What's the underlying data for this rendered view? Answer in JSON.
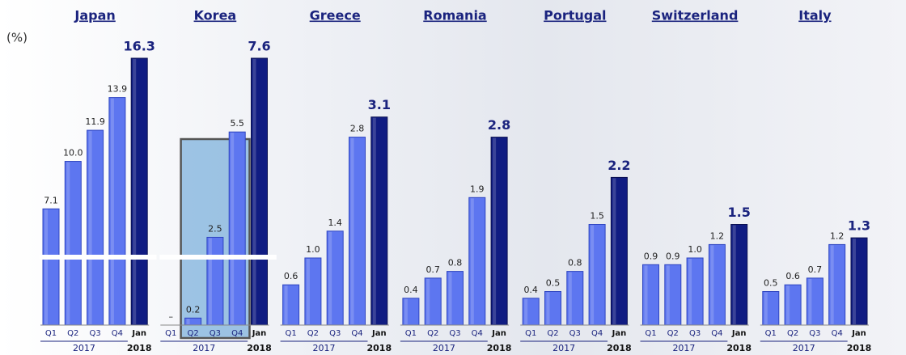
{
  "chart_data": [
    {
      "type": "bar",
      "title": "Japan",
      "ylabel": "(%)",
      "categories": [
        "Q1",
        "Q2",
        "Q3",
        "Q4",
        "Jan"
      ],
      "x_groups": [
        "2017",
        "2018"
      ],
      "values": [
        7.1,
        10.0,
        11.9,
        13.9,
        16.3
      ],
      "value_labels": [
        "7.1",
        "10.0",
        "11.9",
        "13.9",
        "16.3"
      ],
      "colors": [
        "#5d76f0",
        "#5d76f0",
        "#5d76f0",
        "#5d76f0",
        "#101c82"
      ],
      "axis_break": true
    },
    {
      "type": "bar",
      "title": "Korea",
      "categories": [
        "Q1",
        "Q2",
        "Q3",
        "Q4",
        "Jan"
      ],
      "x_groups": [
        "2017",
        "2018"
      ],
      "values": [
        null,
        0.2,
        2.5,
        5.5,
        7.6
      ],
      "value_labels": [
        "–",
        "0.2",
        "2.5",
        "5.5",
        "7.6"
      ],
      "colors": [
        "#5d76f0",
        "#5d76f0",
        "#5d76f0",
        "#5d76f0",
        "#101c82"
      ],
      "axis_break": true
    },
    {
      "type": "bar",
      "title": "Greece",
      "categories": [
        "Q1",
        "Q2",
        "Q3",
        "Q4",
        "Jan"
      ],
      "x_groups": [
        "2017",
        "2018"
      ],
      "values": [
        0.6,
        1.0,
        1.4,
        2.8,
        3.1
      ],
      "value_labels": [
        "0.6",
        "1.0",
        "1.4",
        "2.8",
        "3.1"
      ],
      "colors": [
        "#5d76f0",
        "#5d76f0",
        "#5d76f0",
        "#5d76f0",
        "#101c82"
      ]
    },
    {
      "type": "bar",
      "title": "Romania",
      "categories": [
        "Q1",
        "Q2",
        "Q3",
        "Q4",
        "Jan"
      ],
      "x_groups": [
        "2017",
        "2018"
      ],
      "values": [
        0.4,
        0.7,
        0.8,
        1.9,
        2.8
      ],
      "value_labels": [
        "0.4",
        "0.7",
        "0.8",
        "1.9",
        "2.8"
      ],
      "colors": [
        "#5d76f0",
        "#5d76f0",
        "#5d76f0",
        "#5d76f0",
        "#101c82"
      ]
    },
    {
      "type": "bar",
      "title": "Portugal",
      "categories": [
        "Q1",
        "Q2",
        "Q3",
        "Q4",
        "Jan"
      ],
      "x_groups": [
        "2017",
        "2018"
      ],
      "values": [
        0.4,
        0.5,
        0.8,
        1.5,
        2.2
      ],
      "value_labels": [
        "0.4",
        "0.5",
        "0.8",
        "1.5",
        "2.2"
      ],
      "colors": [
        "#5d76f0",
        "#5d76f0",
        "#5d76f0",
        "#5d76f0",
        "#101c82"
      ]
    },
    {
      "type": "bar",
      "title": "Switzerland",
      "categories": [
        "Q1",
        "Q2",
        "Q3",
        "Q4",
        "Jan"
      ],
      "x_groups": [
        "2017",
        "2018"
      ],
      "values": [
        0.9,
        0.9,
        1.0,
        1.2,
        1.5
      ],
      "value_labels": [
        "0.9",
        "0.9",
        "1.0",
        "1.2",
        "1.5"
      ],
      "colors": [
        "#5d76f0",
        "#5d76f0",
        "#5d76f0",
        "#5d76f0",
        "#101c82"
      ]
    },
    {
      "type": "bar",
      "title": "Italy",
      "categories": [
        "Q1",
        "Q2",
        "Q3",
        "Q4",
        "Jan"
      ],
      "x_groups": [
        "2017",
        "2018"
      ],
      "values": [
        0.5,
        0.6,
        0.7,
        1.2,
        1.3
      ],
      "value_labels": [
        "0.5",
        "0.6",
        "0.7",
        "1.2",
        "1.3"
      ],
      "colors": [
        "#5d76f0",
        "#5d76f0",
        "#5d76f0",
        "#5d76f0",
        "#101c82"
      ]
    }
  ]
}
